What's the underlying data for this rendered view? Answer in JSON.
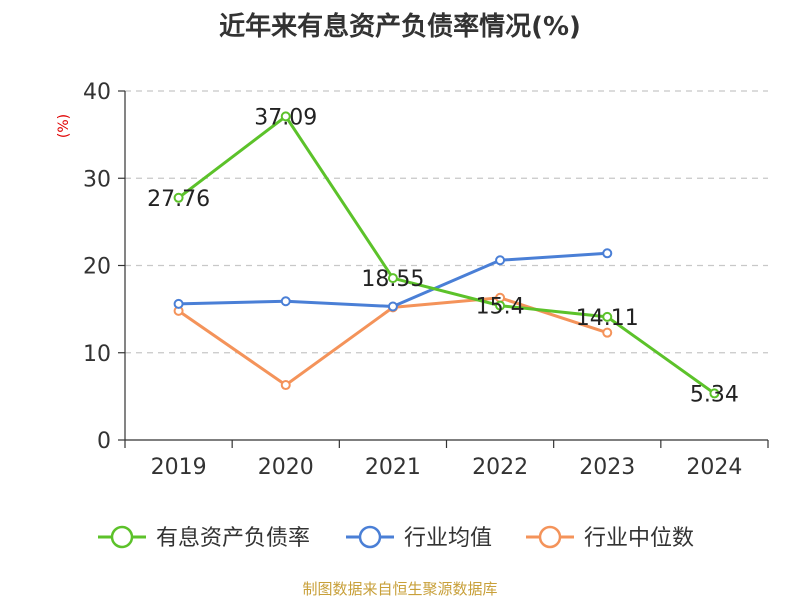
{
  "chart_data": {
    "type": "line",
    "title": "近年来有息资产负债率情况(%)",
    "y_unit": "(%)",
    "categories": [
      "2019",
      "2020",
      "2021",
      "2022",
      "2023",
      "2024"
    ],
    "ylim": [
      0,
      40
    ],
    "yticks": [
      0,
      10,
      20,
      30,
      40
    ],
    "grid": true,
    "legend_position": "bottom",
    "series": [
      {
        "name": "有息资产负债率",
        "color": "#5cc22a",
        "values": [
          27.76,
          37.09,
          18.55,
          15.4,
          14.11,
          5.34
        ],
        "labels": [
          "27.76",
          "37.09",
          "18.55",
          "15.4",
          "14.11",
          "5.34"
        ]
      },
      {
        "name": "行业均值",
        "color": "#4a7fd6",
        "values": [
          15.6,
          15.9,
          15.3,
          20.6,
          21.4,
          null
        ]
      },
      {
        "name": "行业中位数",
        "color": "#f4935a",
        "values": [
          14.8,
          6.3,
          15.2,
          16.3,
          12.3,
          null
        ]
      }
    ]
  },
  "footer": {
    "source": "制图数据来自恒生聚源数据库"
  }
}
